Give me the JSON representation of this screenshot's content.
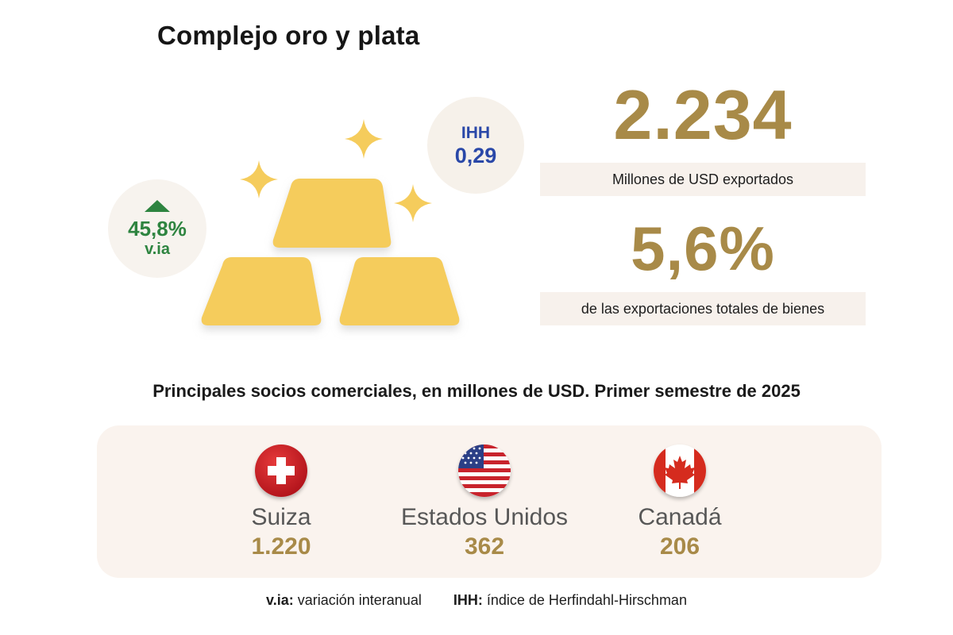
{
  "title": "Complejo oro y plata",
  "ihh": {
    "label": "IHH",
    "value": "0,29"
  },
  "variation": {
    "value": "45,8%",
    "label": "v.ia"
  },
  "exports": {
    "value": "2.234",
    "caption": "Millones de USD exportados"
  },
  "share": {
    "value": "5,6%",
    "caption": "de las exportaciones totales de bienes"
  },
  "partners_heading": "Principales socios comerciales, en millones de USD. Primer semestre de 2025",
  "partners": [
    {
      "name": "Suiza",
      "value": "1.220"
    },
    {
      "name": "Estados Unidos",
      "value": "362"
    },
    {
      "name": "Canadá",
      "value": "206"
    }
  ],
  "footnotes": [
    {
      "term": "v.ia:",
      "text": "variación interanual"
    },
    {
      "term": "IHH:",
      "text": "índice de Herfindahl-Hirschman"
    }
  ],
  "colors": {
    "gold": "#a88a48",
    "bar": "#f5cc5c",
    "green": "#2e8440",
    "blue": "#2a48a8"
  }
}
